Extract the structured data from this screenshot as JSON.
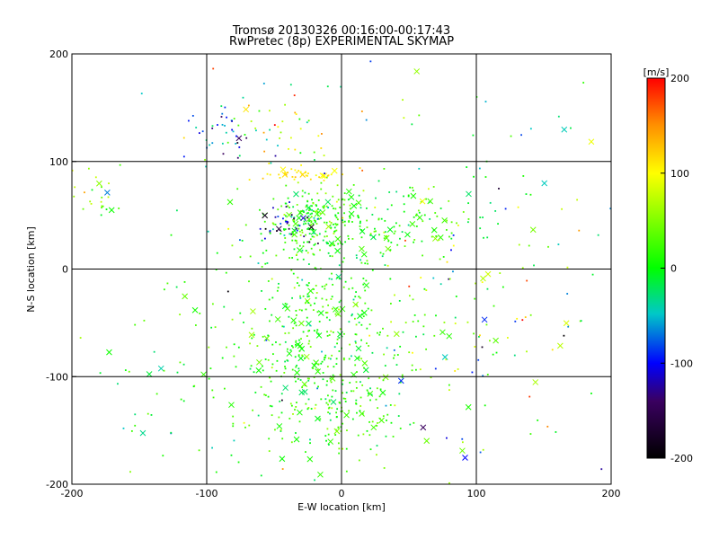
{
  "chart_data": {
    "type": "scatter",
    "title_line1": "Tromsø 20130326 00:16:00-00:17:43",
    "title_line2": "RwPretec (8p) EXPERIMENTAL SKYMAP",
    "xlabel": "E-W location [km]",
    "ylabel": "N-S location [km]",
    "xlim": [
      -200,
      200
    ],
    "ylim": [
      -200,
      200
    ],
    "xticks": [
      -200,
      -100,
      0,
      100,
      200
    ],
    "yticks": [
      -200,
      -100,
      0,
      100,
      200
    ],
    "grid": true,
    "colorbar": {
      "label": "[m/s]",
      "range": [
        -200,
        200
      ],
      "ticks": [
        200,
        100,
        0,
        -100,
        -200
      ]
    },
    "markers": {
      "small": "dot",
      "large": "x"
    },
    "clusters": [
      {
        "cx": -20,
        "cy": 45,
        "sx": 18,
        "sy": 15,
        "n": 220,
        "v": 15,
        "vs": 25
      },
      {
        "cx": 30,
        "cy": 40,
        "sx": 35,
        "sy": 15,
        "n": 110,
        "v": 10,
        "vs": 25
      },
      {
        "cx": -30,
        "cy": 88,
        "sx": 18,
        "sy": 4,
        "n": 40,
        "v": 110,
        "vs": 10
      },
      {
        "cx": -15,
        "cy": -60,
        "sx": 35,
        "sy": 45,
        "n": 420,
        "v": 15,
        "vs": 25
      },
      {
        "cx": 0,
        "cy": -130,
        "sx": 30,
        "sy": 25,
        "n": 130,
        "v": 15,
        "vs": 20
      },
      {
        "cx": -40,
        "cy": 40,
        "sx": 12,
        "sy": 8,
        "n": 35,
        "v": -110,
        "vs": 40
      },
      {
        "cx": -85,
        "cy": 125,
        "sx": 15,
        "sy": 15,
        "n": 45,
        "v": -60,
        "vs": 50
      },
      {
        "cx": -35,
        "cy": 130,
        "sx": 20,
        "sy": 15,
        "n": 30,
        "v": 70,
        "vs": 60
      },
      {
        "cx": -180,
        "cy": 70,
        "sx": 12,
        "sy": 15,
        "n": 25,
        "v": 50,
        "vs": 35
      },
      {
        "cx": 110,
        "cy": 60,
        "sx": 50,
        "sy": 45,
        "n": 55,
        "v": 0,
        "vs": 60
      },
      {
        "cx": -120,
        "cy": -100,
        "sx": 35,
        "sy": 50,
        "n": 60,
        "v": 10,
        "vs": 30
      },
      {
        "cx": 75,
        "cy": -60,
        "sx": 30,
        "sy": 55,
        "n": 70,
        "v": 20,
        "vs": 60
      },
      {
        "cx": 150,
        "cy": -50,
        "sx": 40,
        "sy": 60,
        "n": 30,
        "v": 40,
        "vs": 80
      },
      {
        "cx": 0,
        "cy": 0,
        "sx": 150,
        "sy": 150,
        "n": 90,
        "v": 10,
        "vs": 90
      }
    ]
  }
}
